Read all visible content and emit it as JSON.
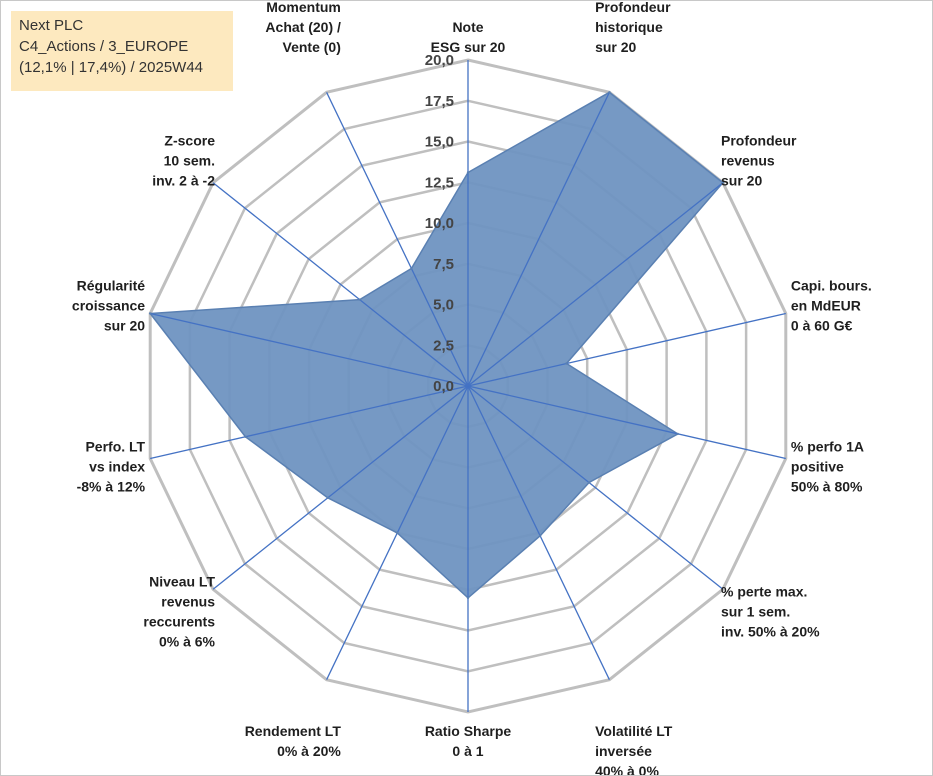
{
  "info_box": {
    "line1": "Next PLC",
    "line2": "C4_Actions / 3_EUROPE",
    "line3": "(12,1% | 17,4%) / 2025W44"
  },
  "colors": {
    "fill": "#6f94c1",
    "stroke": "#5a80b2",
    "spokes": "#4472c4",
    "grid": "#bfbfbf",
    "info_background": "#fde9bf"
  },
  "chart_data": {
    "type": "radar",
    "title": "",
    "rmin": 0,
    "rmax": 20,
    "tick_step": 2.5,
    "tick_labels": [
      "0,0",
      "2,5",
      "5,0",
      "7,5",
      "10,0",
      "12,5",
      "15,0",
      "17,5",
      "20,0"
    ],
    "grid": true,
    "categories": [
      [
        "Note",
        "ESG sur 20"
      ],
      [
        "Profondeur",
        "historique",
        "sur 20"
      ],
      [
        "Profondeur",
        "revenus",
        "sur 20"
      ],
      [
        "Capi. bours.",
        "en MdEUR",
        "0 à 60 G€"
      ],
      [
        "% perfo 1A",
        "positive",
        "50% à 80%"
      ],
      [
        "% perte max.",
        "sur 1 sem.",
        "inv. 50% à 20%"
      ],
      [
        "Volatilité LT",
        "inversée",
        "40% à 0%"
      ],
      [
        "Ratio Sharpe",
        "0 à 1"
      ],
      [
        "Rendement LT",
        "0% à 20%"
      ],
      [
        "Niveau LT",
        "revenus",
        "reccurents",
        "0% à 6%"
      ],
      [
        "Perfo. LT",
        "vs index",
        "-8% à 12%"
      ],
      [
        "Régularité",
        "croissance",
        "sur 20"
      ],
      [
        "Z-score",
        "10 sem.",
        "inv. 2 à -2"
      ],
      [
        "Momentum",
        "Achat (20) /",
        "Vente (0)"
      ]
    ],
    "series": [
      {
        "values": [
          13.1,
          20.0,
          20.0,
          6.2,
          13.2,
          9.5,
          10.2,
          13.0,
          10.0,
          11.0,
          14.0,
          20.0,
          8.5,
          8.0
        ]
      }
    ]
  }
}
